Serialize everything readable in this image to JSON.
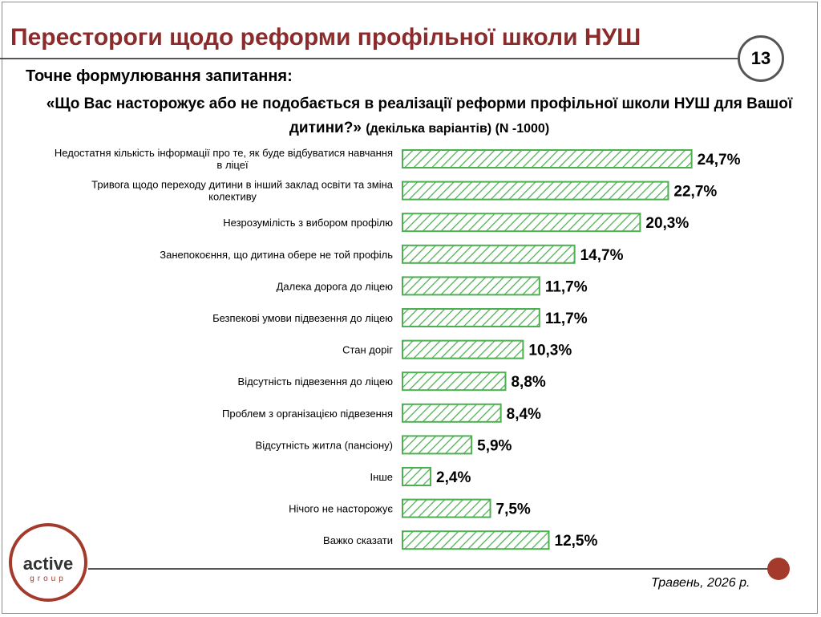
{
  "slide": {
    "title": "Перестороги щодо реформи профільної школи НУШ",
    "page_number": "13",
    "subtitle": "Точне формулювання запитання:",
    "question": "«Що Вас насторожує або не подобається в реалізації реформи профільної школи НУШ для Вашої дитини?»",
    "question_note": "(декілька варіантів) (N -1000)",
    "date": "Травень, 2026 р.",
    "logo_main": "active",
    "logo_sub": "group"
  },
  "colors": {
    "title": "#8b2b2b",
    "bar_stroke": "#4caf50",
    "accent": "#a33a2c"
  },
  "chart_data": {
    "type": "bar",
    "orientation": "horizontal",
    "pattern": "diagonal-hatch",
    "categories": [
      [
        "Недостатня кількість інформації про те, як буде відбуватися навчання",
        "в ліцеї"
      ],
      [
        "Тривога щодо переходу дитини в інший заклад освіти та зміна",
        "колективу"
      ],
      [
        "Незрозумілість з вибором профілю"
      ],
      [
        "Занепокоєння, що дитина обере не той профіль"
      ],
      [
        "Далека дорога до ліцею"
      ],
      [
        "Безпекові умови підвезення до ліцею"
      ],
      [
        "Стан доріг"
      ],
      [
        "Відсутність підвезення до ліцею"
      ],
      [
        "Проблем з організацією підвезення"
      ],
      [
        "Відсутність житла (пансіону)"
      ],
      [
        "Інше"
      ],
      [
        "Нічого не насторожує"
      ],
      [
        "Важко сказати"
      ]
    ],
    "values": [
      24.7,
      22.7,
      20.3,
      14.7,
      11.7,
      11.7,
      10.3,
      8.8,
      8.4,
      5.9,
      2.4,
      7.5,
      12.5
    ],
    "value_labels": [
      "24,7%",
      "22,7%",
      "20,3%",
      "14,7%",
      "11,7%",
      "11,7%",
      "10,3%",
      "8,8%",
      "8,4%",
      "5,9%",
      "2,4%",
      "7,5%",
      "12,5%"
    ],
    "xlim": [
      0,
      25
    ],
    "grid": false,
    "legend": "none"
  }
}
